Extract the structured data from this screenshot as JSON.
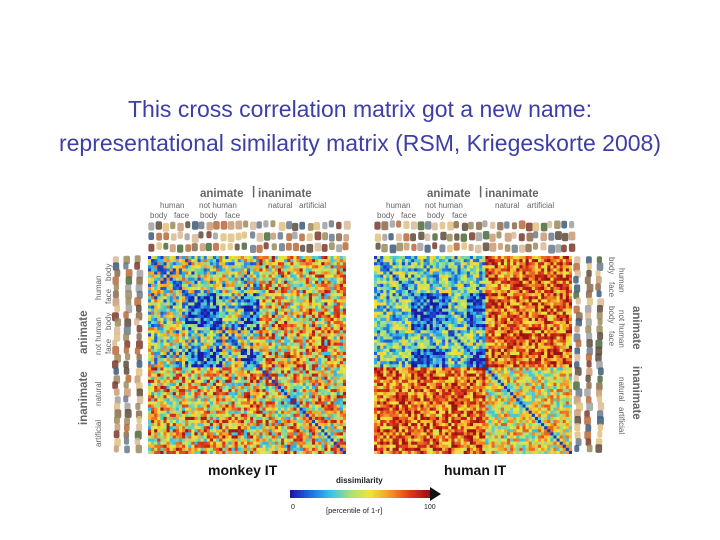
{
  "slide": {
    "title_line1": "This cross correlation matrix got a new name:",
    "title_line2": "representational similarity matrix (RSM, Kriegeskorte 2008)"
  },
  "panels": [
    {
      "label": "monkey IT",
      "header": {
        "animate": "animate",
        "inanimate": "inanimate",
        "human": "human",
        "not_human": "not human",
        "natural": "natural",
        "artificial": "artificial",
        "body": "body",
        "face": "face"
      }
    },
    {
      "label": "human IT",
      "header": {
        "animate": "animate",
        "inanimate": "inanimate",
        "human": "human",
        "not_human": "not human",
        "natural": "natural",
        "artificial": "artificial",
        "body": "body",
        "face": "face"
      }
    }
  ],
  "colorbar": {
    "title": "dissimilarity",
    "min_label": "0",
    "max_label": "100",
    "subtitle": "[percentile of 1-r]",
    "colors": [
      "#1a1aa8",
      "#1f6fe0",
      "#36c4e8",
      "#a6e07a",
      "#f3e33a",
      "#f39a2a",
      "#e23a1c",
      "#9c1010"
    ]
  }
}
